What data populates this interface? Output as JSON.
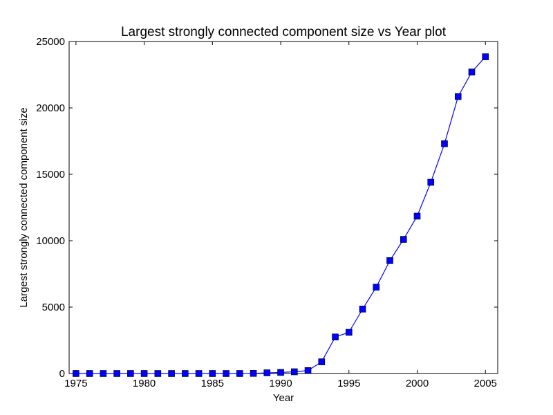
{
  "chart_data": {
    "type": "line",
    "title": "Largest strongly connected component size vs Year plot",
    "xlabel": "Year",
    "ylabel": "Largest strongly connected component size",
    "xlim": [
      1974.5,
      2005.9
    ],
    "ylim": [
      0,
      25000
    ],
    "x_ticks": [
      1975,
      1980,
      1985,
      1990,
      1995,
      2000,
      2005
    ],
    "y_ticks": [
      0,
      5000,
      10000,
      15000,
      20000,
      25000
    ],
    "grid": false,
    "legend": "none",
    "series": [
      {
        "color": "#0000ff",
        "marker": "square",
        "x": [
          1975,
          1976,
          1977,
          1978,
          1979,
          1980,
          1981,
          1982,
          1983,
          1984,
          1985,
          1986,
          1987,
          1988,
          1989,
          1990,
          1991,
          1992,
          1993,
          1994,
          1995,
          1996,
          1997,
          1998,
          1999,
          2000,
          2001,
          2002,
          2003,
          2004,
          2005
        ],
        "y": [
          0,
          0,
          0,
          0,
          0,
          0,
          0,
          0,
          0,
          0,
          0,
          0,
          0,
          10,
          50,
          80,
          130,
          220,
          880,
          2750,
          3100,
          4850,
          6500,
          8500,
          10100,
          11850,
          14400,
          17300,
          20850,
          22700,
          23850
        ]
      }
    ]
  }
}
